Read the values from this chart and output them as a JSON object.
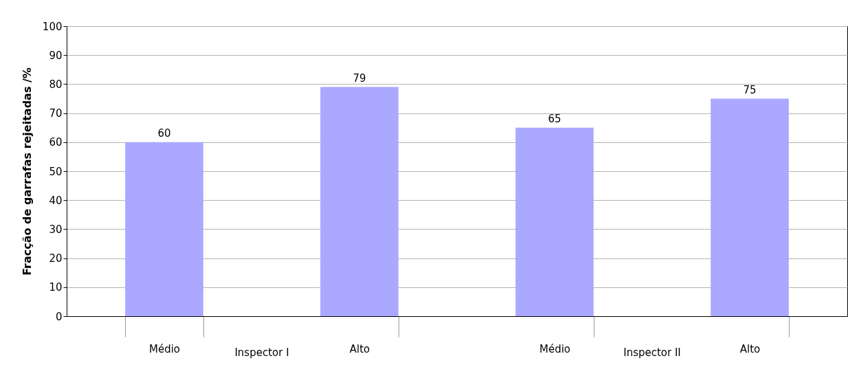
{
  "chart_data": {
    "type": "bar",
    "ylabel": "Fracção de garrafas rejeitadas /%",
    "categories": [
      "Médio",
      "Alto",
      "Médio",
      "Alto"
    ],
    "values": [
      60,
      79,
      65,
      75
    ],
    "color": "#aaa8ff",
    "ylim": [
      0,
      100
    ],
    "yticks": [
      0,
      10,
      20,
      30,
      40,
      50,
      60,
      70,
      80,
      90,
      100
    ],
    "grid": "y",
    "data_labels": true,
    "annotations": [
      "Inspector I",
      "Inspector II"
    ]
  }
}
